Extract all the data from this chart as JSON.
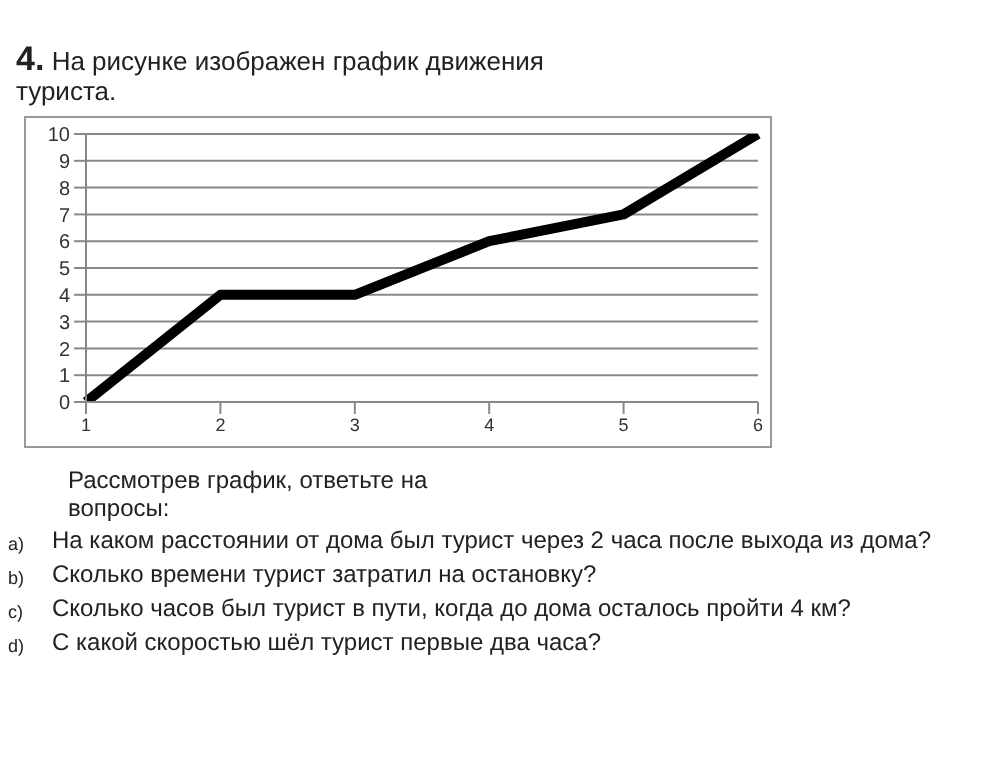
{
  "chart_data": {
    "type": "line",
    "title": "4. На рисунке изображен график движения туриста.",
    "categories": [
      "1",
      "2",
      "3",
      "4",
      "5",
      "6"
    ],
    "series": [
      {
        "color": "#000000",
        "values": [
          0,
          4,
          4,
          6,
          7,
          10
        ]
      }
    ],
    "ylim": [
      0,
      10
    ],
    "yticks": [
      0,
      1,
      2,
      3,
      4,
      5,
      6,
      7,
      8,
      9,
      10
    ],
    "grid": "y",
    "annotations": [
      "Рассмотрев график, ответьте на вопросы:",
      "a) На каком расстоянии от дома был турист через 2 часа после выхода из дома?",
      "b) Сколько времени турист затратил на остановку?",
      "c) Сколько часов был турист в пути, когда до дома осталось пройти 4 км?",
      "d) С какой скоростью шёл турист первые два часа?"
    ]
  }
}
